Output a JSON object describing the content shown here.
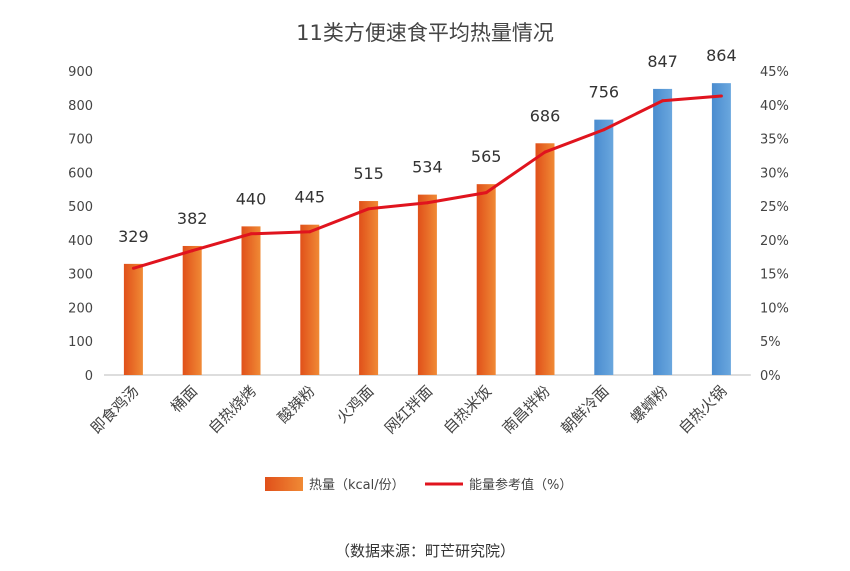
{
  "chart_data": {
    "type": "bar",
    "title": "11类方便速食平均热量情况",
    "categories": [
      "即食鸡汤",
      "桶面",
      "自热烧烤",
      "酸辣粉",
      "火鸡面",
      "网红拌面",
      "自热米饭",
      "南昌拌粉",
      "朝鲜冷面",
      "螺蛳粉",
      "自热火锅"
    ],
    "series": [
      {
        "name": "热量（kcal/份）",
        "type": "bar",
        "axis": "left",
        "values": [
          329,
          382,
          440,
          445,
          515,
          534,
          565,
          686,
          756,
          847,
          864
        ]
      },
      {
        "name": "能量参考值（%）",
        "type": "line",
        "axis": "right",
        "values": [
          15.8,
          18.4,
          20.9,
          21.2,
          24.6,
          25.5,
          27.0,
          33.0,
          36.3,
          40.6,
          41.3
        ]
      }
    ],
    "bar_colors": [
      "#e8601f",
      "#e8601f",
      "#e8601f",
      "#e8601f",
      "#e8601f",
      "#e8601f",
      "#e8601f",
      "#e8601f",
      "#5b9bd5",
      "#5b9bd5",
      "#5b9bd5"
    ],
    "line_color": "#e0141e",
    "ylim_left": [
      0,
      900
    ],
    "yticks_left": [
      0,
      100,
      200,
      300,
      400,
      500,
      600,
      700,
      800,
      900
    ],
    "ylim_right": [
      0,
      45
    ],
    "yticks_right": [
      "0%",
      "5%",
      "10%",
      "15%",
      "20%",
      "25%",
      "30%",
      "35%",
      "40%",
      "45%"
    ],
    "grid": false,
    "legend_position": "bottom"
  },
  "source": "（数据来源：町芒研究院）"
}
